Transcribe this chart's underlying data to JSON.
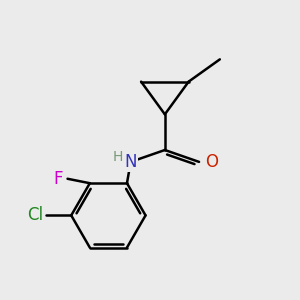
{
  "background_color": "#ebebeb",
  "bond_color": "#000000",
  "bond_width": 1.8,
  "atom_colors": {
    "N": "#3333bb",
    "O": "#cc2200",
    "F": "#cc00cc",
    "Cl": "#228822",
    "C": "#000000",
    "H": "#779977"
  },
  "font_size_atoms": 12,
  "font_size_h": 10
}
